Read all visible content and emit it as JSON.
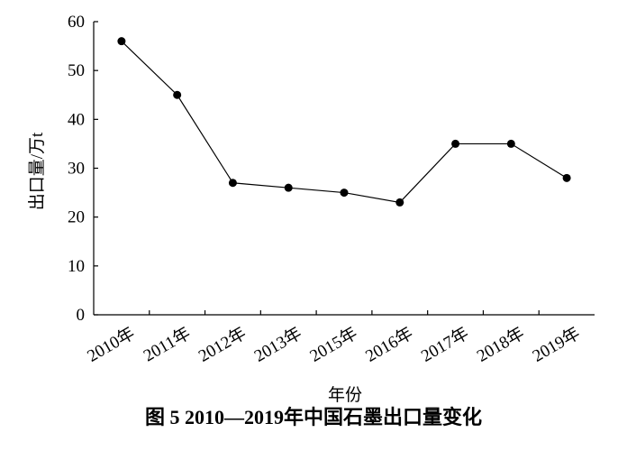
{
  "chart_data": {
    "type": "line",
    "title": "图 5  2010—2019年中国石墨出口量变化",
    "x_label": "年份",
    "y_label": "出口量/万t",
    "categories": [
      "2010年",
      "2011年",
      "2012年",
      "2013年",
      "2015年",
      "2016年",
      "2017年",
      "2018年",
      "2019年"
    ],
    "values": [
      56,
      45,
      27,
      26,
      25,
      23,
      35,
      35,
      28
    ],
    "color": "#000000",
    "ylim": [
      0,
      60
    ],
    "yticks": [
      0,
      10,
      20,
      30,
      40,
      50,
      60
    ],
    "grid": false
  }
}
